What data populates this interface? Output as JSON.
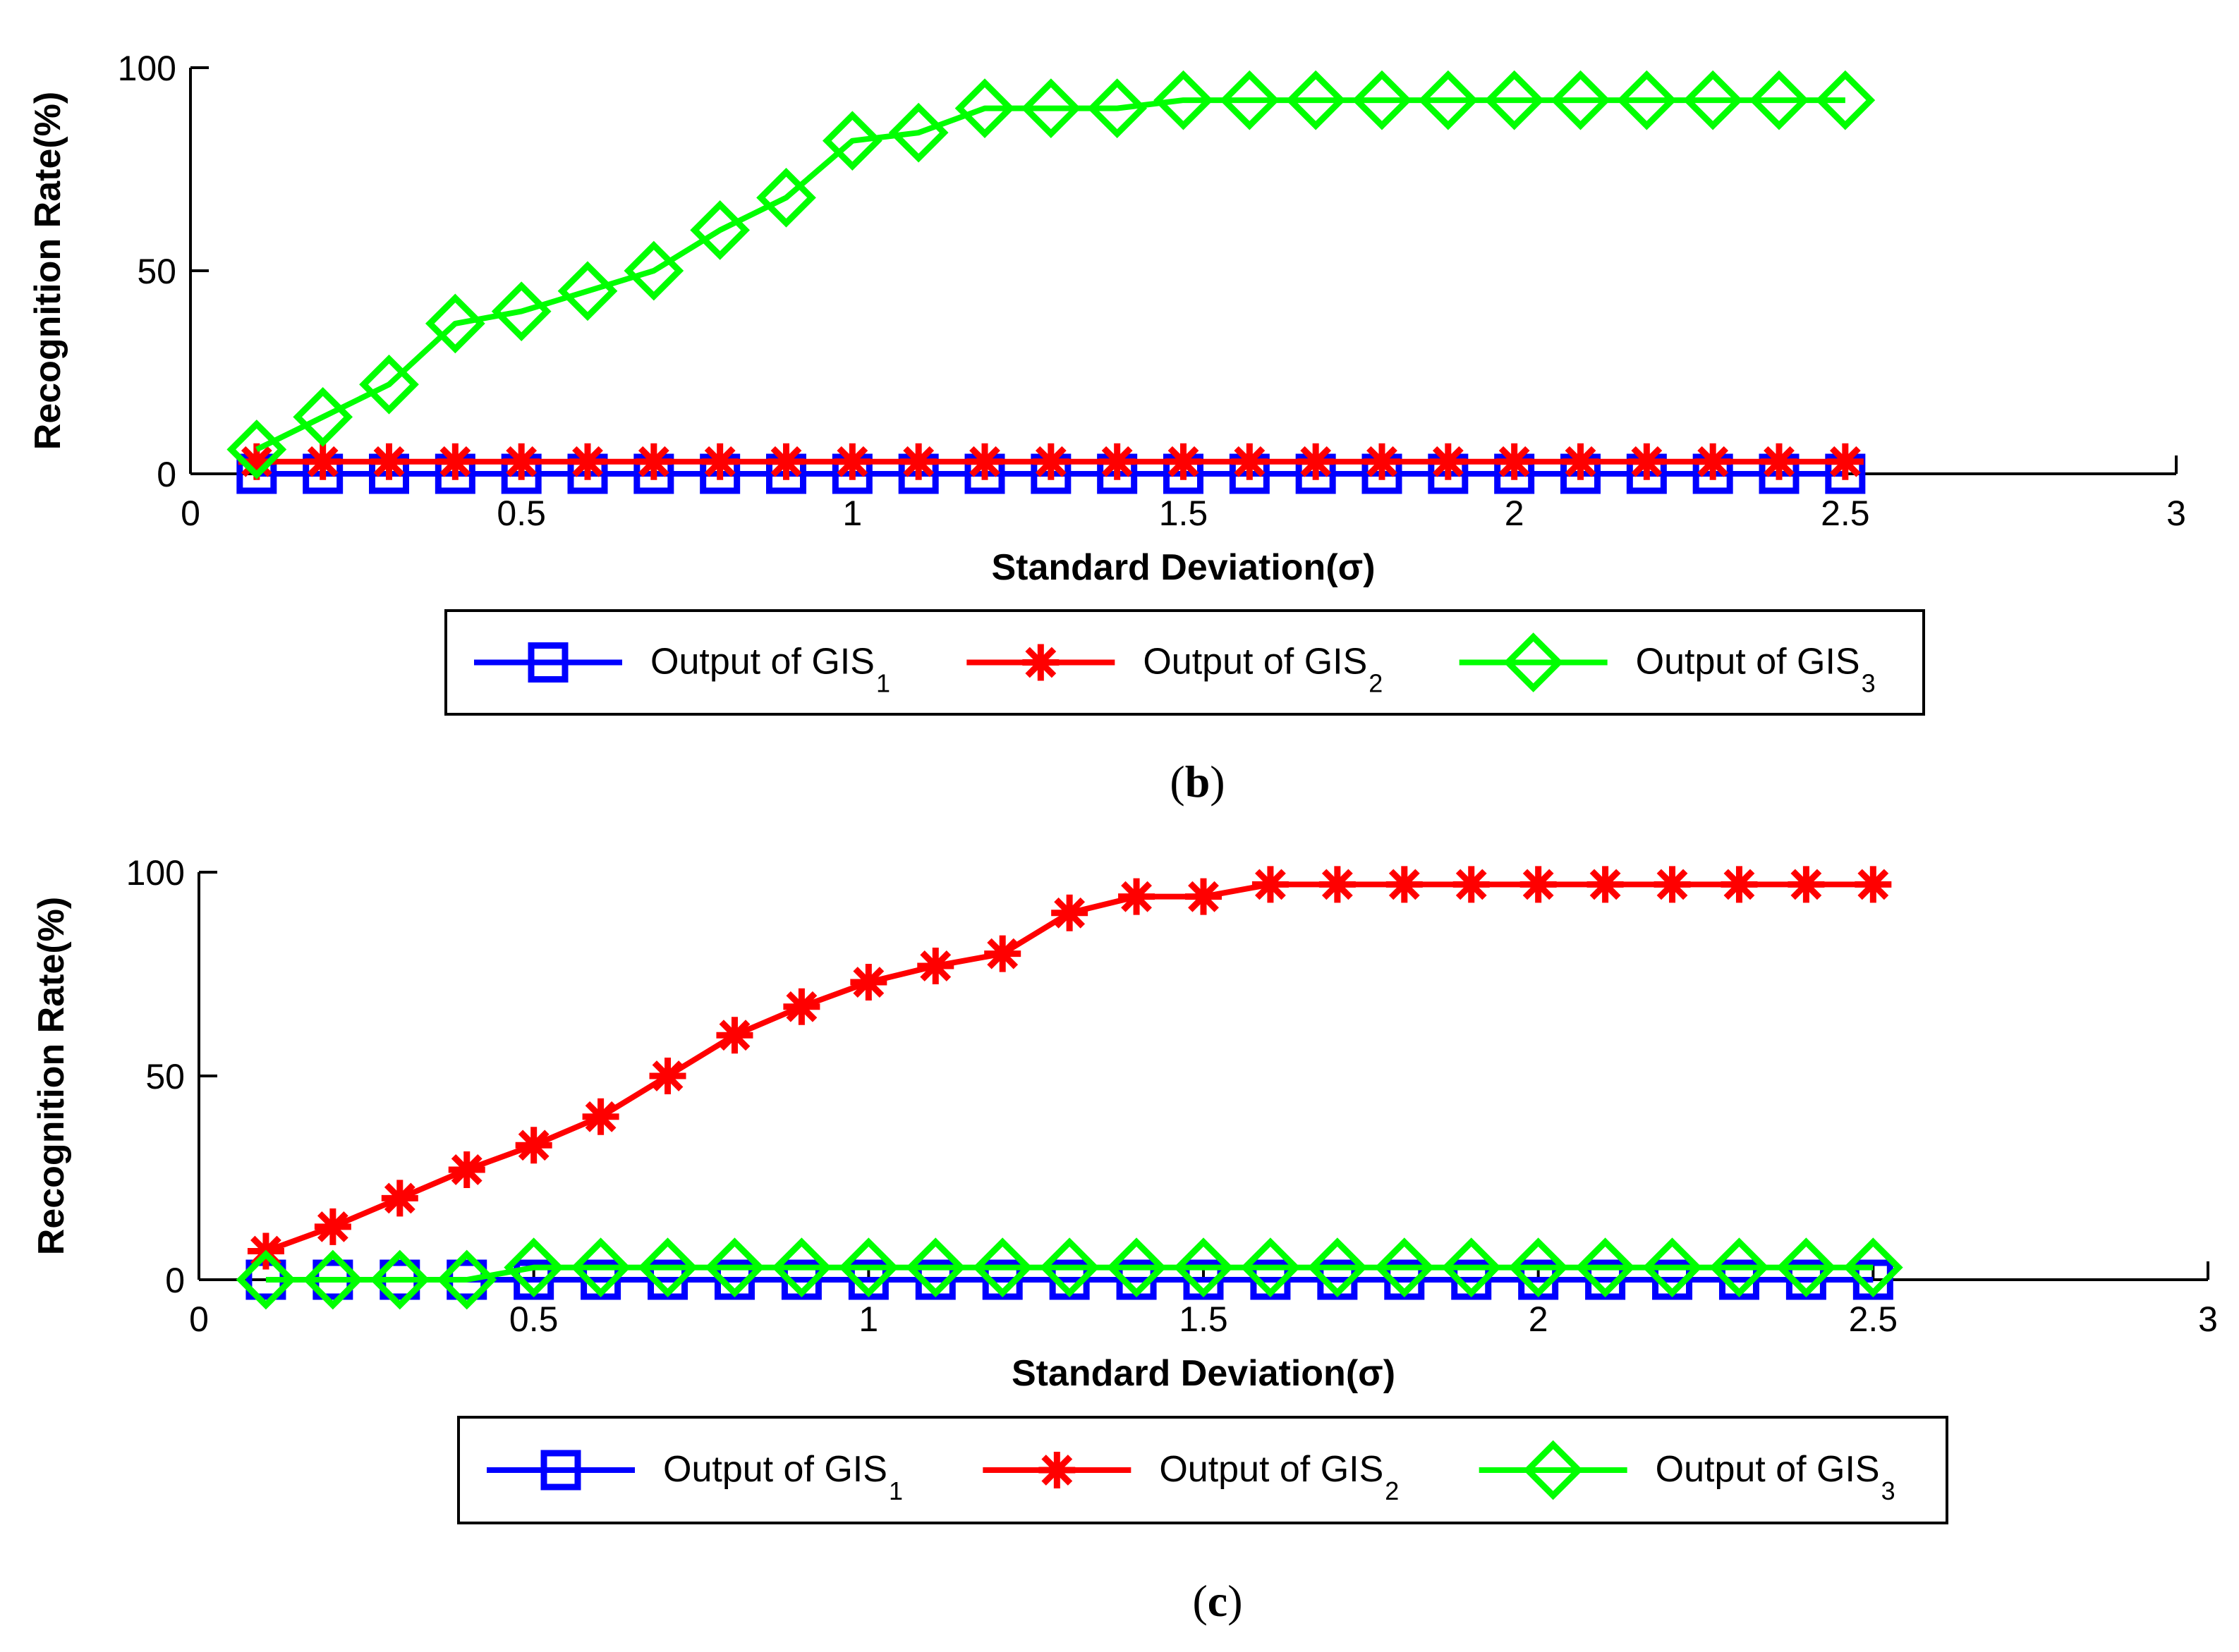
{
  "chart_data": [
    {
      "type": "line",
      "panel_label": "b",
      "caption_open": "(",
      "caption_close": ")",
      "xlabel": "Standard Deviation(σ)",
      "ylabel": "Recognition Rate(%)",
      "xlim": [
        0,
        3
      ],
      "ylim": [
        0,
        100
      ],
      "xticks": [
        0,
        0.5,
        1,
        1.5,
        2,
        2.5,
        3
      ],
      "xtick_labels": [
        "0",
        "0.5",
        "1",
        "1.5",
        "2",
        "2.5",
        "3"
      ],
      "yticks": [
        0,
        50,
        100
      ],
      "ytick_labels": [
        "0",
        "50",
        "100"
      ],
      "x": [
        0.1,
        0.2,
        0.3,
        0.4,
        0.5,
        0.6,
        0.7,
        0.8,
        0.9,
        1.0,
        1.1,
        1.2,
        1.3,
        1.4,
        1.5,
        1.6,
        1.7,
        1.8,
        1.9,
        2.0,
        2.1,
        2.2,
        2.3,
        2.4,
        2.5
      ],
      "series": [
        {
          "name": "Output of GIS",
          "subscript": "1",
          "color": "#0000ff",
          "marker": "square",
          "values": [
            0,
            0,
            0,
            0,
            0,
            0,
            0,
            0,
            0,
            0,
            0,
            0,
            0,
            0,
            0,
            0,
            0,
            0,
            0,
            0,
            0,
            0,
            0,
            0,
            0
          ]
        },
        {
          "name": "Output of GIS",
          "subscript": "2",
          "color": "#ff0000",
          "marker": "star",
          "values": [
            3,
            3,
            3,
            3,
            3,
            3,
            3,
            3,
            3,
            3,
            3,
            3,
            3,
            3,
            3,
            3,
            3,
            3,
            3,
            3,
            3,
            3,
            3,
            3,
            3
          ]
        },
        {
          "name": "Output of GIS",
          "subscript": "3",
          "color": "#00ff00",
          "marker": "diamond",
          "values": [
            6,
            14,
            22,
            37,
            40,
            45,
            50,
            60,
            68,
            82,
            84,
            90,
            90,
            90,
            92,
            92,
            92,
            92,
            92,
            92,
            92,
            92,
            92,
            92,
            92
          ]
        }
      ]
    },
    {
      "type": "line",
      "panel_label": "c",
      "caption_open": "(",
      "caption_close": ")",
      "xlabel": "Standard Deviation(σ)",
      "ylabel": "Recognition Rate(%)",
      "xlim": [
        0,
        3
      ],
      "ylim": [
        0,
        100
      ],
      "xticks": [
        0,
        0.5,
        1,
        1.5,
        2,
        2.5,
        3
      ],
      "xtick_labels": [
        "0",
        "0.5",
        "1",
        "1.5",
        "2",
        "2.5",
        "3"
      ],
      "yticks": [
        0,
        50,
        100
      ],
      "ytick_labels": [
        "0",
        "50",
        "100"
      ],
      "x": [
        0.1,
        0.2,
        0.3,
        0.4,
        0.5,
        0.6,
        0.7,
        0.8,
        0.9,
        1.0,
        1.1,
        1.2,
        1.3,
        1.4,
        1.5,
        1.6,
        1.7,
        1.8,
        1.9,
        2.0,
        2.1,
        2.2,
        2.3,
        2.4,
        2.5
      ],
      "series": [
        {
          "name": "Output of GIS",
          "subscript": "1",
          "color": "#0000ff",
          "marker": "square",
          "values": [
            0,
            0,
            0,
            0,
            0,
            0,
            0,
            0,
            0,
            0,
            0,
            0,
            0,
            0,
            0,
            0,
            0,
            0,
            0,
            0,
            0,
            0,
            0,
            0,
            0
          ]
        },
        {
          "name": "Output of GIS",
          "subscript": "2",
          "color": "#ff0000",
          "marker": "star",
          "values": [
            7,
            13,
            20,
            27,
            33,
            40,
            50,
            60,
            67,
            73,
            77,
            80,
            90,
            94,
            94,
            97,
            97,
            97,
            97,
            97,
            97,
            97,
            97,
            97,
            97
          ]
        },
        {
          "name": "Output of GIS",
          "subscript": "3",
          "color": "#00ff00",
          "marker": "diamond",
          "values": [
            0,
            0,
            0,
            0,
            3,
            3,
            3,
            3,
            3,
            3,
            3,
            3,
            3,
            3,
            3,
            3,
            3,
            3,
            3,
            3,
            3,
            3,
            3,
            3,
            3
          ]
        }
      ]
    }
  ]
}
